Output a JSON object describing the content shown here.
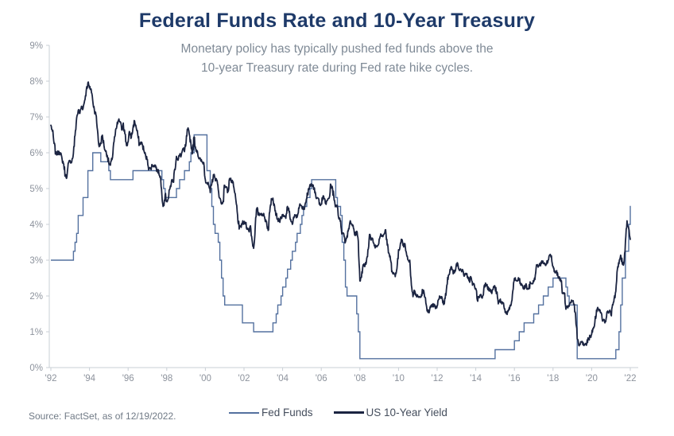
{
  "header": {
    "title": "Federal Funds Rate and 10-Year Treasury",
    "subtitle_line1": "Monetary policy has typically pushed fed funds above the",
    "subtitle_line2": "10-year Treasury rate during Fed rate hike cycles."
  },
  "footer": {
    "source": "Source: FactSet, as of 12/19/2022."
  },
  "style": {
    "title_color": "#1e3a69",
    "subtitle_color": "#7f8a96",
    "axis_line_color": "#c9cfd6",
    "axis_text_color": "#8d939d",
    "fed_funds_color": "#54719f",
    "treasury_color": "#1b2441",
    "background_color": "#ffffff"
  },
  "chart_data": {
    "type": "line",
    "title": "Federal Funds Rate and 10-Year Treasury",
    "subtitle": "Monetary policy has typically pushed fed funds above the 10-year Treasury rate during Fed rate hike cycles.",
    "unit": "percent",
    "grid": false,
    "legend_position": "bottom-center",
    "x_axis": {
      "tick_labels": [
        "'92",
        "'94",
        "'96",
        "'98",
        "'00",
        "'02",
        "'04",
        "'06",
        "'08",
        "'10",
        "'12",
        "'14",
        "'16",
        "'18",
        "'20",
        "'22"
      ],
      "first_tick_date": "1992-12",
      "tick_interval_years": 2,
      "end_date": "2022-12"
    },
    "y_axis": {
      "tick_labels": [
        "0%",
        "1%",
        "2%",
        "3%",
        "4%",
        "5%",
        "6%",
        "7%",
        "8%",
        "9%"
      ],
      "min": 0,
      "max": 9
    },
    "series": [
      {
        "name": "Fed Funds",
        "color": "#54719f",
        "style": "step",
        "points": [
          [
            "1992-12",
            3.0
          ],
          [
            "1994-02",
            3.25
          ],
          [
            "1994-03",
            3.5
          ],
          [
            "1994-04",
            3.75
          ],
          [
            "1994-05",
            4.25
          ],
          [
            "1994-08",
            4.75
          ],
          [
            "1994-11",
            5.5
          ],
          [
            "1995-02",
            6.0
          ],
          [
            "1995-07",
            5.75
          ],
          [
            "1995-12",
            5.5
          ],
          [
            "1996-01",
            5.25
          ],
          [
            "1997-03",
            5.5
          ],
          [
            "1998-09",
            5.25
          ],
          [
            "1998-10",
            5.0
          ],
          [
            "1998-11",
            4.75
          ],
          [
            "1999-06",
            5.0
          ],
          [
            "1999-08",
            5.25
          ],
          [
            "1999-11",
            5.5
          ],
          [
            "2000-02",
            5.75
          ],
          [
            "2000-03",
            6.0
          ],
          [
            "2000-05",
            6.5
          ],
          [
            "2001-01",
            5.5
          ],
          [
            "2001-03",
            5.0
          ],
          [
            "2001-04",
            4.5
          ],
          [
            "2001-05",
            4.0
          ],
          [
            "2001-06",
            3.75
          ],
          [
            "2001-08",
            3.5
          ],
          [
            "2001-09",
            3.0
          ],
          [
            "2001-10",
            2.5
          ],
          [
            "2001-11",
            2.0
          ],
          [
            "2001-12",
            1.75
          ],
          [
            "2002-11",
            1.25
          ],
          [
            "2003-06",
            1.0
          ],
          [
            "2004-06",
            1.25
          ],
          [
            "2004-08",
            1.5
          ],
          [
            "2004-09",
            1.75
          ],
          [
            "2004-11",
            2.0
          ],
          [
            "2004-12",
            2.25
          ],
          [
            "2005-02",
            2.5
          ],
          [
            "2005-03",
            2.75
          ],
          [
            "2005-05",
            3.0
          ],
          [
            "2005-06",
            3.25
          ],
          [
            "2005-08",
            3.5
          ],
          [
            "2005-09",
            3.75
          ],
          [
            "2005-11",
            4.0
          ],
          [
            "2005-12",
            4.25
          ],
          [
            "2006-01",
            4.5
          ],
          [
            "2006-03",
            4.75
          ],
          [
            "2006-05",
            5.0
          ],
          [
            "2006-06",
            5.25
          ],
          [
            "2007-09",
            4.75
          ],
          [
            "2007-10",
            4.5
          ],
          [
            "2007-12",
            4.25
          ],
          [
            "2008-01",
            3.5
          ],
          [
            "2008-02",
            3.0
          ],
          [
            "2008-03",
            2.25
          ],
          [
            "2008-04",
            2.0
          ],
          [
            "2008-10",
            1.5
          ],
          [
            "2008-11",
            1.0
          ],
          [
            "2008-12",
            0.25
          ],
          [
            "2015-12",
            0.5
          ],
          [
            "2016-12",
            0.75
          ],
          [
            "2017-03",
            1.0
          ],
          [
            "2017-06",
            1.25
          ],
          [
            "2017-12",
            1.5
          ],
          [
            "2018-03",
            1.75
          ],
          [
            "2018-06",
            2.0
          ],
          [
            "2018-09",
            2.25
          ],
          [
            "2018-12",
            2.5
          ],
          [
            "2019-08",
            2.25
          ],
          [
            "2019-09",
            2.0
          ],
          [
            "2019-10",
            1.75
          ],
          [
            "2020-03",
            0.25
          ],
          [
            "2022-03",
            0.5
          ],
          [
            "2022-05",
            1.0
          ],
          [
            "2022-06",
            1.75
          ],
          [
            "2022-07",
            2.5
          ],
          [
            "2022-09",
            3.25
          ],
          [
            "2022-11",
            4.0
          ],
          [
            "2022-12",
            4.5
          ]
        ]
      },
      {
        "name": "US 10-Year Yield",
        "color": "#1b2441",
        "style": "line",
        "start": "1992-12",
        "frequency": "monthly",
        "values": [
          6.77,
          6.6,
          6.26,
          5.98,
          5.97,
          6.04,
          5.96,
          5.81,
          5.68,
          5.36,
          5.33,
          5.72,
          5.77,
          5.75,
          5.97,
          6.48,
          6.97,
          7.18,
          7.1,
          7.3,
          7.24,
          7.46,
          7.74,
          7.96,
          7.81,
          7.78,
          7.47,
          7.2,
          7.06,
          6.63,
          6.17,
          6.28,
          6.49,
          6.2,
          6.04,
          5.93,
          5.71,
          5.65,
          5.81,
          6.27,
          6.51,
          6.74,
          6.91,
          6.87,
          6.64,
          6.83,
          6.53,
          6.2,
          6.3,
          6.58,
          6.42,
          6.69,
          6.89,
          6.71,
          6.49,
          6.22,
          6.3,
          6.21,
          6.03,
          5.88,
          5.81,
          5.54,
          5.57,
          5.65,
          5.64,
          5.65,
          5.5,
          5.46,
          5.34,
          4.81,
          4.53,
          4.83,
          4.65,
          4.72,
          5.0,
          5.23,
          5.18,
          5.54,
          5.9,
          5.79,
          5.94,
          5.92,
          6.11,
          6.03,
          6.28,
          6.66,
          6.52,
          6.26,
          5.99,
          6.44,
          6.1,
          6.05,
          5.83,
          5.8,
          5.74,
          5.72,
          5.24,
          5.16,
          5.1,
          4.89,
          5.14,
          5.39,
          5.28,
          5.24,
          4.97,
          4.73,
          4.57,
          4.65,
          5.09,
          5.04,
          4.91,
          5.28,
          5.21,
          5.16,
          4.93,
          4.65,
          4.26,
          3.87,
          3.94,
          4.05,
          4.03,
          4.05,
          3.9,
          3.81,
          3.96,
          3.57,
          3.33,
          3.98,
          4.45,
          4.27,
          4.29,
          4.3,
          4.27,
          4.15,
          4.08,
          3.83,
          4.35,
          4.72,
          4.73,
          4.5,
          4.28,
          4.13,
          4.1,
          4.19,
          4.23,
          4.22,
          4.17,
          4.5,
          4.34,
          4.14,
          4.0,
          4.18,
          4.26,
          4.2,
          4.46,
          4.54,
          4.47,
          4.42,
          4.57,
          4.72,
          4.99,
          5.11,
          5.11,
          5.09,
          4.88,
          4.72,
          4.73,
          4.6,
          4.56,
          4.76,
          4.72,
          4.56,
          4.69,
          4.75,
          5.1,
          5.0,
          4.67,
          4.52,
          4.53,
          4.15,
          4.1,
          3.74,
          3.74,
          3.51,
          3.68,
          3.88,
          4.1,
          4.01,
          3.89,
          3.69,
          3.81,
          3.53,
          2.42,
          2.52,
          2.87,
          2.82,
          2.93,
          3.29,
          3.72,
          3.56,
          3.59,
          3.4,
          3.39,
          3.4,
          3.59,
          3.73,
          3.69,
          3.73,
          3.85,
          3.42,
          3.2,
          3.01,
          2.7,
          2.65,
          2.54,
          2.76,
          3.29,
          3.39,
          3.58,
          3.41,
          3.46,
          3.17,
          3.0,
          3.0,
          2.3,
          1.98,
          2.15,
          2.01,
          1.98,
          1.97,
          1.97,
          2.17,
          2.05,
          1.8,
          1.62,
          1.53,
          1.68,
          1.72,
          1.75,
          1.65,
          1.72,
          1.91,
          1.98,
          1.96,
          1.76,
          1.93,
          2.3,
          2.58,
          2.74,
          2.81,
          2.62,
          2.72,
          2.9,
          2.86,
          2.71,
          2.72,
          2.71,
          2.56,
          2.6,
          2.54,
          2.42,
          2.53,
          2.3,
          2.33,
          2.21,
          1.88,
          1.98,
          2.04,
          1.94,
          2.2,
          2.36,
          2.32,
          2.17,
          2.17,
          2.07,
          2.26,
          2.24,
          2.09,
          1.78,
          1.89,
          1.81,
          1.81,
          1.64,
          1.5,
          1.56,
          1.63,
          1.76,
          2.14,
          2.49,
          2.43,
          2.42,
          2.48,
          2.3,
          2.3,
          2.19,
          2.32,
          2.21,
          2.2,
          2.36,
          2.35,
          2.4,
          2.58,
          2.86,
          2.84,
          2.87,
          2.98,
          2.91,
          2.89,
          2.89,
          3.0,
          3.15,
          3.12,
          2.83,
          2.71,
          2.68,
          2.57,
          2.53,
          2.4,
          2.07,
          2.06,
          1.63,
          1.7,
          1.71,
          1.81,
          1.86,
          1.76,
          1.5,
          0.8,
          0.62,
          0.67,
          0.73,
          0.62,
          0.65,
          0.68,
          0.79,
          0.87,
          0.93,
          1.08,
          1.26,
          1.61,
          1.64,
          1.62,
          1.52,
          1.32,
          1.28,
          1.37,
          1.58,
          1.56,
          1.47,
          1.76,
          1.93,
          2.13,
          2.75,
          2.9,
          3.14,
          2.9,
          2.9,
          3.52,
          4.1,
          3.89,
          3.58
        ]
      }
    ]
  }
}
